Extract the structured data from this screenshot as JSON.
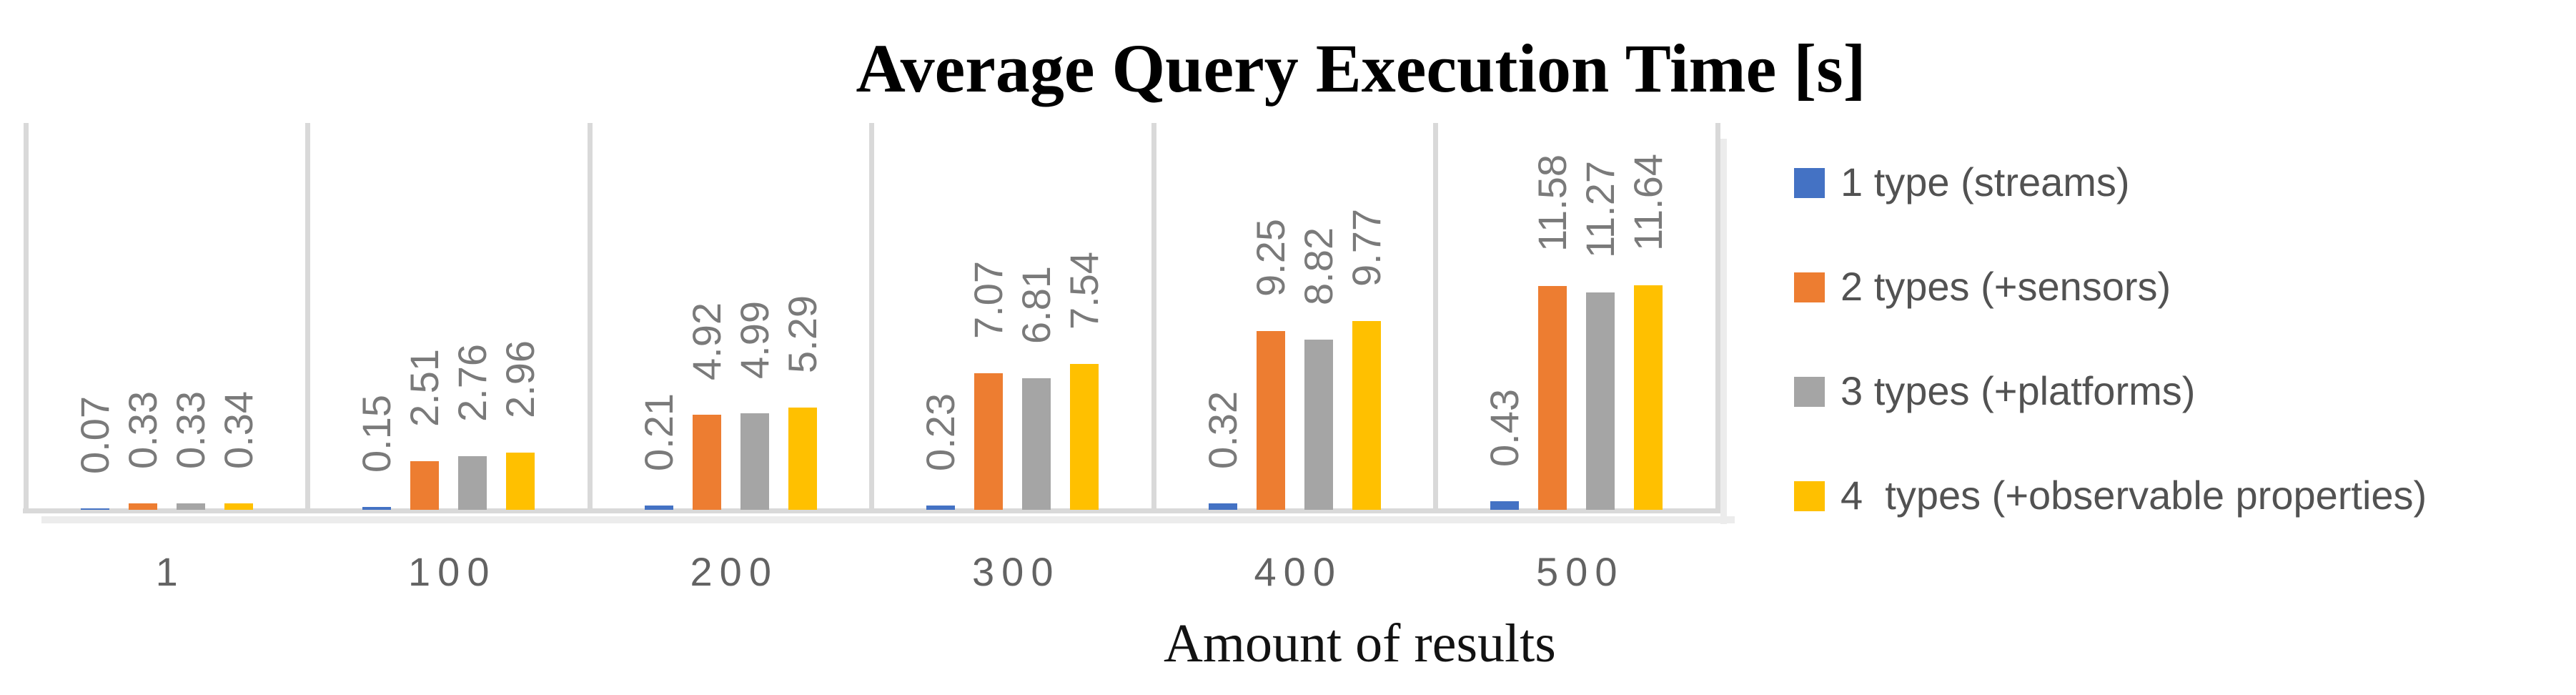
{
  "chart": {
    "title": "Average Query Execution Time [s]",
    "x_axis_title": "Amount of results"
  },
  "chart_data": {
    "type": "bar",
    "title": "Average Query Execution Time [s]",
    "xlabel": "Amount of results",
    "ylabel": "",
    "categories": [
      "1",
      "100",
      "200",
      "300",
      "400",
      "500"
    ],
    "series": [
      {
        "name": "1 type (streams)",
        "color": "#4472C4",
        "values": [
          0.07,
          0.15,
          0.21,
          0.23,
          0.32,
          0.43
        ]
      },
      {
        "name": "2 types (+sensors)",
        "color": "#ED7D31",
        "values": [
          0.33,
          2.51,
          4.92,
          7.07,
          9.25,
          11.58
        ]
      },
      {
        "name": "3 types (+platforms)",
        "color": "#A5A5A5",
        "values": [
          0.33,
          2.76,
          4.99,
          6.81,
          8.82,
          11.27
        ]
      },
      {
        "name": "4  types (+observable properties)",
        "color": "#FFC000",
        "values": [
          0.34,
          2.96,
          5.29,
          7.54,
          9.77,
          11.64
        ]
      }
    ],
    "ylim": [
      0,
      20
    ],
    "grid": "vertical category separators only, no horizontal gridlines, no y-axis labels",
    "legend_position": "middle-right",
    "data_labels": "outside end, rotated 90 degrees CCW, two decimals",
    "colors": {
      "gridline": "#D9D9D9",
      "axis_line": "#D9D9D9",
      "data_label_text": "#7A7A7A",
      "category_label_text": "#636363",
      "legend_text": "#525252",
      "title_text": "#000000"
    }
  }
}
